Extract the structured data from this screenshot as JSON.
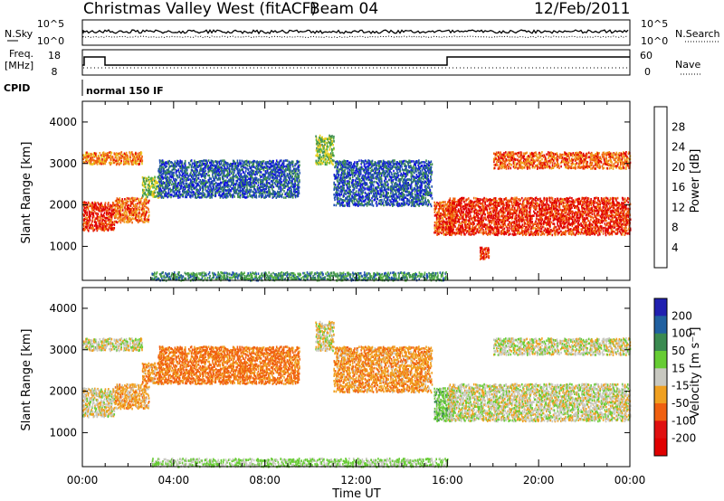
{
  "header": {
    "station": "Christmas Valley West (fitACF)",
    "beam": "Beam 04",
    "date": "12/Feb/2011"
  },
  "strip": {
    "nsky_label": "N.Sky",
    "nsky_ticks": [
      "10^5",
      "10^0"
    ],
    "nsearch_label": "N.Search",
    "nsearch_ticks": [
      "10^5",
      "10^0"
    ],
    "freq_label_1": "Freq.",
    "freq_label_2": "[MHz]",
    "freq_ticks": [
      "18",
      "8"
    ],
    "nave_label": "Nave",
    "nave_ticks": [
      "60",
      "0"
    ],
    "cpid_label": "CPID",
    "cpid_value": "normal 150 IF"
  },
  "axes": {
    "ylabel": "Slant Range [km]",
    "yticks": [
      "4000",
      "3000",
      "2000",
      "1000"
    ],
    "xlabel": "Time UT",
    "xticks": [
      "00:00",
      "04:00",
      "08:00",
      "12:00",
      "16:00",
      "20:00",
      "00:00"
    ]
  },
  "colorbars": {
    "power": {
      "label": "Power [dB]",
      "ticks": [
        "28",
        "24",
        "20",
        "16",
        "12",
        "8",
        "4"
      ],
      "colors": [
        "#1010e0",
        "#2050b0",
        "#3a8a50",
        "#55b040",
        "#e8d020",
        "#f0a020",
        "#f06010",
        "#e00000"
      ]
    },
    "velocity": {
      "label": "Velocity [m s⁻¹]",
      "ticks": [
        "200",
        "100",
        "50",
        "15",
        "-15",
        "-50",
        "-100",
        "-200"
      ],
      "colors": [
        "#2020b0",
        "#2060a0",
        "#3a8a50",
        "#66cc33",
        "#c8c8c0",
        "#f0a020",
        "#f06010",
        "#e01010",
        "#e00000"
      ]
    }
  },
  "chart_data": [
    {
      "type": "heatmap",
      "title": "Power [dB]",
      "xlabel": "Time UT",
      "ylabel": "Slant Range [km]",
      "xlim": [
        "00:00",
        "24:00"
      ],
      "ylim": [
        180,
        4500
      ],
      "zlim": [
        0,
        30
      ],
      "regions": [
        {
          "t0": 0.0,
          "t1": 1.4,
          "r0": 1400,
          "r1": 2100,
          "level": 27
        },
        {
          "t0": 0.0,
          "t1": 2.6,
          "r0": 3000,
          "r1": 3300,
          "level": 22
        },
        {
          "t0": 1.4,
          "t1": 2.9,
          "r0": 1600,
          "r1": 2200,
          "level": 24
        },
        {
          "t0": 2.6,
          "t1": 3.4,
          "r0": 2200,
          "r1": 2700,
          "level": 14
        },
        {
          "t0": 3.3,
          "t1": 9.5,
          "r0": 2200,
          "r1": 3100,
          "level": 6
        },
        {
          "t0": 10.2,
          "t1": 11.0,
          "r0": 3000,
          "r1": 3700,
          "level": 14
        },
        {
          "t0": 11.0,
          "t1": 15.3,
          "r0": 2000,
          "r1": 3100,
          "level": 6
        },
        {
          "t0": 15.4,
          "t1": 16.3,
          "r0": 1300,
          "r1": 2100,
          "level": 25
        },
        {
          "t0": 16.0,
          "t1": 24.0,
          "r0": 1300,
          "r1": 2200,
          "level": 27
        },
        {
          "t0": 18.0,
          "t1": 24.0,
          "r0": 2900,
          "r1": 3300,
          "level": 24
        },
        {
          "t0": 17.4,
          "t1": 17.8,
          "r0": 700,
          "r1": 1000,
          "level": 27
        },
        {
          "t0": 3.0,
          "t1": 16.0,
          "r0": 200,
          "r1": 400,
          "level": 10
        }
      ]
    },
    {
      "type": "heatmap",
      "title": "Velocity [m s⁻¹]",
      "xlabel": "Time UT",
      "ylabel": "Slant Range [km]",
      "xlim": [
        "00:00",
        "24:00"
      ],
      "ylim": [
        180,
        4500
      ],
      "zlim": [
        -200,
        200
      ],
      "regions": [
        {
          "t0": 0.0,
          "t1": 1.4,
          "r0": 1400,
          "r1": 2100,
          "level": -5
        },
        {
          "t0": 0.0,
          "t1": 2.6,
          "r0": 3000,
          "r1": 3300,
          "level": -5
        },
        {
          "t0": 1.4,
          "t1": 2.9,
          "r0": 1600,
          "r1": 2200,
          "level": -30
        },
        {
          "t0": 2.6,
          "t1": 3.4,
          "r0": 2200,
          "r1": 2700,
          "level": -40
        },
        {
          "t0": 3.3,
          "t1": 9.5,
          "r0": 2200,
          "r1": 3100,
          "level": -60
        },
        {
          "t0": 10.2,
          "t1": 11.0,
          "r0": 3000,
          "r1": 3700,
          "level": -5
        },
        {
          "t0": 11.0,
          "t1": 15.3,
          "r0": 2000,
          "r1": 3100,
          "level": -40
        },
        {
          "t0": 15.4,
          "t1": 16.3,
          "r0": 1300,
          "r1": 2100,
          "level": 30
        },
        {
          "t0": 16.0,
          "t1": 24.0,
          "r0": 1300,
          "r1": 2200,
          "level": 0
        },
        {
          "t0": 18.0,
          "t1": 24.0,
          "r0": 2900,
          "r1": 3300,
          "level": 0
        },
        {
          "t0": 3.0,
          "t1": 16.0,
          "r0": 200,
          "r1": 400,
          "level": 20
        }
      ]
    }
  ]
}
